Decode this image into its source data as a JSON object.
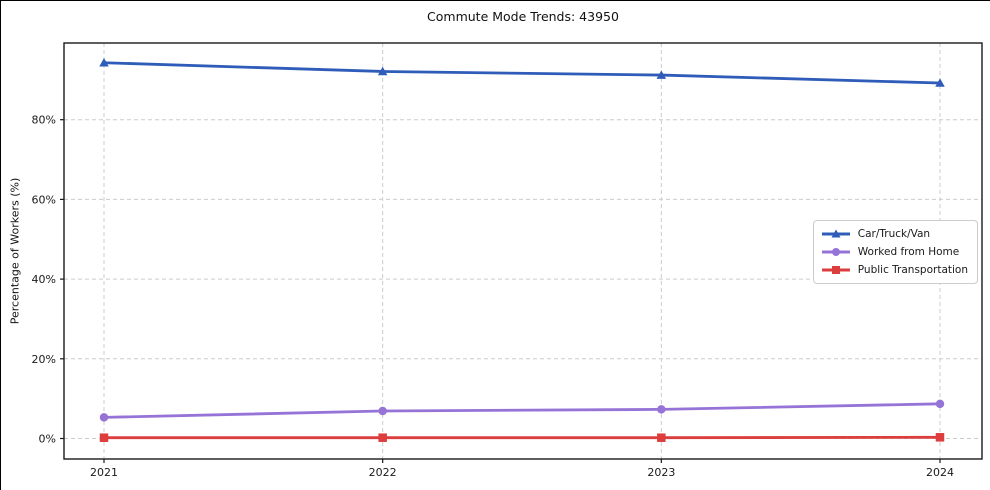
{
  "title": "Commute Mode Trends: 43950",
  "chart_data": {
    "type": "line",
    "title": "Commute Mode Trends: 43950",
    "xlabel": "",
    "ylabel": "Percentage of Workers (%)",
    "categories": [
      "2021",
      "2022",
      "2023",
      "2024"
    ],
    "series": [
      {
        "name": "Car/Truck/Van",
        "values": [
          94.3,
          92.1,
          91.2,
          89.2
        ],
        "color": "#2e5cb8",
        "marker": "triangle"
      },
      {
        "name": "Worked from Home",
        "values": [
          5.3,
          6.9,
          7.3,
          8.7
        ],
        "color": "#9673d7",
        "marker": "circle"
      },
      {
        "name": "Public Transportation",
        "values": [
          0.2,
          0.2,
          0.2,
          0.3
        ],
        "color": "#dc3d3d",
        "marker": "square"
      }
    ],
    "y_ticks": [
      "0%",
      "20%",
      "40%",
      "60%",
      "80%"
    ],
    "y_tick_values": [
      0,
      20,
      40,
      60,
      80
    ],
    "ylim": [
      -5.6,
      99.3
    ],
    "grid": true,
    "grid_style": "dashed",
    "legend_position": "center right",
    "colors": {
      "grid": "#cccccc",
      "spine": "#1a1a1a",
      "tick_text": "#1a1a1a",
      "title_text": "#111111"
    }
  }
}
